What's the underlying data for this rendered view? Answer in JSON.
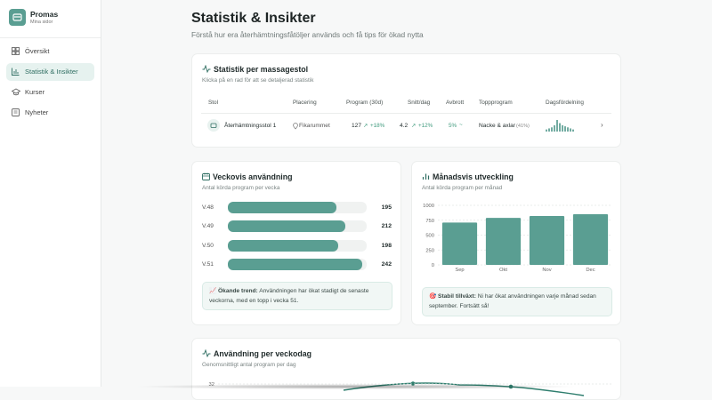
{
  "sidebar": {
    "brand": "Promas",
    "subtitle": "Mina sidor",
    "nav": [
      "Översikt",
      "Statistik & Insikter",
      "Kurser",
      "Nyheter"
    ],
    "active": 1
  },
  "header": {
    "title": "Statistik & Insikter",
    "subtitle": "Förstå hur era återhämtningsfåtöljer används och få tips för ökad nytta"
  },
  "chair_table": {
    "title": "Statistik per massagestol",
    "subtitle": "Klicka på en rad för att se detaljerad statistik",
    "columns": [
      "Stol",
      "Placering",
      "Program (30d)",
      "Snitt/dag",
      "Avbrott",
      "Toppprogram",
      "Dagsfördelning"
    ],
    "rows": [
      {
        "chair": "Återhämtningsstol 1",
        "location": "Fikarummet",
        "programs": 127,
        "programs_change": "+18%",
        "per_day": 4.2,
        "per_day_change": "+12%",
        "interruptions": "5%",
        "top_program": "Nacke & axlar",
        "top_share": "(41%)",
        "distribution": [
          2,
          3,
          4,
          6,
          11,
          8,
          6,
          5,
          4,
          3,
          2
        ]
      }
    ]
  },
  "weekly": {
    "chart_data": {
      "type": "hbar",
      "title": "Veckovis användning",
      "subtitle": "Antal körda program per vecka",
      "categories": [
        "V.48",
        "V.49",
        "V.50",
        "V.51"
      ],
      "values": [
        195,
        212,
        198,
        242
      ],
      "color": "#5a9e92",
      "xlim": [
        0,
        250
      ]
    },
    "insight": {
      "label": "📈 Ökande trend:",
      "text": "Användningen har ökat stadigt de senaste veckorna, med en topp i vecka 51."
    }
  },
  "monthly": {
    "chart_data": {
      "type": "bar",
      "title": "Månadsvis utveckling",
      "subtitle": "Antal körda program per månad",
      "categories": [
        "Sep",
        "Okt",
        "Nov",
        "Dec"
      ],
      "values": [
        710,
        790,
        820,
        850
      ],
      "color": "#5a9e92",
      "ylim": [
        0,
        1000
      ],
      "yticks": [
        0,
        250,
        500,
        750,
        1000
      ],
      "grid": true
    },
    "insight": {
      "label": "🎯 Stabil tillväxt:",
      "text": "Ni har ökat användningen varje månad sedan september. Fortsätt så!"
    }
  },
  "weekday": {
    "chart_data": {
      "type": "line",
      "title": "Användning per veckodag",
      "subtitle": "Genomsnittligt antal program per dag",
      "yticks": [
        32
      ]
    }
  }
}
